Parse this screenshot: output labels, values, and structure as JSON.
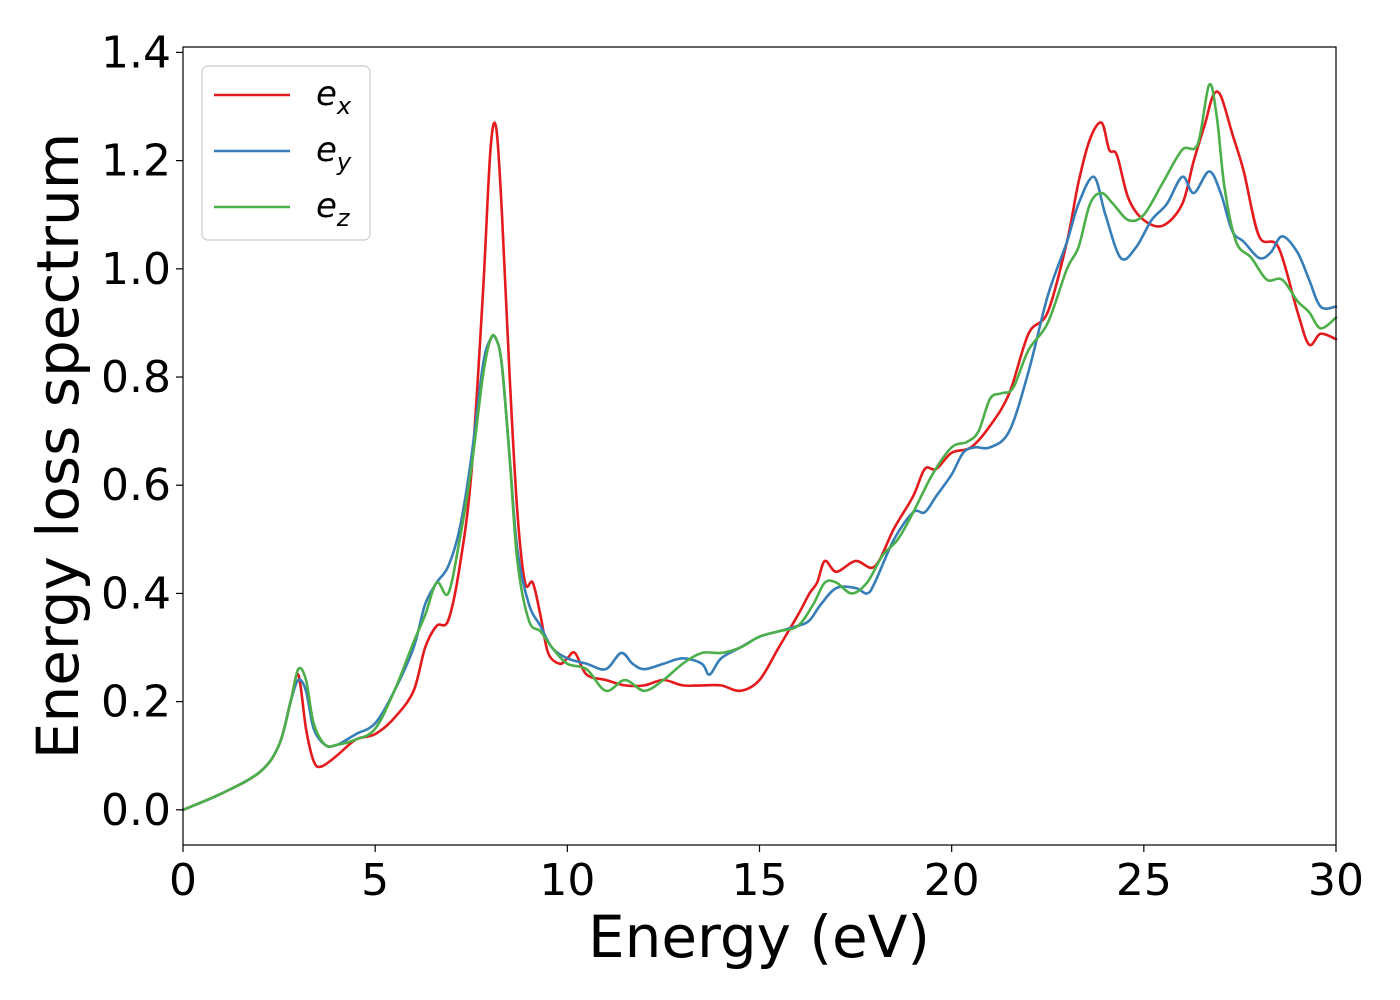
{
  "chart_data": {
    "type": "line",
    "title": "",
    "xlabel": "Energy (eV)",
    "ylabel": "Energy loss spectrum",
    "xlim": [
      0,
      30
    ],
    "ylim": [
      -0.065,
      1.41
    ],
    "xticks": [
      0,
      5,
      10,
      15,
      20,
      25,
      30
    ],
    "xtick_labels": [
      "0",
      "5",
      "10",
      "15",
      "20",
      "25",
      "30"
    ],
    "yticks": [
      0.0,
      0.2,
      0.4,
      0.6,
      0.8,
      1.0,
      1.2,
      1.4
    ],
    "ytick_labels": [
      "0.0",
      "0.2",
      "0.4",
      "0.6",
      "0.8",
      "1.0",
      "1.2",
      "1.4"
    ],
    "grid": false,
    "legend_position": "top-left",
    "series": [
      {
        "name": "e",
        "subscript": "x",
        "color": "#e41a1c",
        "x": [
          0,
          1,
          2,
          2.5,
          2.8,
          3.0,
          3.2,
          3.4,
          3.6,
          4,
          4.5,
          5,
          5.5,
          6,
          6.3,
          6.6,
          6.9,
          7.2,
          7.5,
          7.8,
          8.0,
          8.15,
          8.3,
          8.5,
          8.7,
          8.9,
          9.1,
          9.3,
          9.5,
          9.8,
          10.0,
          10.2,
          10.5,
          11,
          11.5,
          12,
          12.5,
          13,
          13.5,
          14,
          14.5,
          15,
          15.5,
          16,
          16.3,
          16.5,
          16.7,
          17,
          17.5,
          18,
          18.5,
          19,
          19.3,
          19.6,
          20,
          20.5,
          21,
          21.5,
          22,
          22.5,
          23,
          23.3,
          23.6,
          23.9,
          24.1,
          24.3,
          24.6,
          25,
          25.5,
          26,
          26.3,
          26.6,
          26.8,
          27.0,
          27.3,
          27.6,
          28,
          28.5,
          29,
          29.3,
          29.6,
          30
        ],
        "y": [
          0.0,
          0.03,
          0.07,
          0.12,
          0.2,
          0.25,
          0.15,
          0.09,
          0.08,
          0.1,
          0.13,
          0.14,
          0.17,
          0.22,
          0.3,
          0.34,
          0.35,
          0.45,
          0.62,
          0.95,
          1.22,
          1.26,
          1.1,
          0.8,
          0.55,
          0.42,
          0.42,
          0.36,
          0.29,
          0.27,
          0.28,
          0.29,
          0.25,
          0.24,
          0.23,
          0.23,
          0.24,
          0.23,
          0.23,
          0.23,
          0.22,
          0.24,
          0.3,
          0.36,
          0.4,
          0.42,
          0.46,
          0.44,
          0.46,
          0.45,
          0.52,
          0.58,
          0.63,
          0.63,
          0.66,
          0.67,
          0.71,
          0.77,
          0.88,
          0.92,
          1.05,
          1.16,
          1.24,
          1.27,
          1.22,
          1.21,
          1.13,
          1.09,
          1.08,
          1.12,
          1.2,
          1.27,
          1.32,
          1.32,
          1.25,
          1.18,
          1.06,
          1.04,
          0.92,
          0.86,
          0.88,
          0.87
        ]
      },
      {
        "name": "e",
        "subscript": "y",
        "color": "#377eb8",
        "x": [
          0,
          1,
          2,
          2.5,
          2.8,
          3.0,
          3.2,
          3.4,
          3.7,
          4,
          4.5,
          5,
          5.5,
          6,
          6.3,
          6.6,
          6.9,
          7.2,
          7.5,
          7.8,
          8.0,
          8.15,
          8.3,
          8.5,
          8.7,
          9.0,
          9.3,
          9.6,
          10,
          10.5,
          11,
          11.4,
          11.7,
          12,
          12.5,
          13,
          13.5,
          13.7,
          14,
          14.5,
          15,
          15.5,
          16,
          16.3,
          16.6,
          17,
          17.5,
          17.8,
          18,
          18.5,
          19,
          19.3,
          19.6,
          20,
          20.3,
          20.6,
          21,
          21.5,
          22,
          22.5,
          23,
          23.3,
          23.7,
          24,
          24.4,
          24.8,
          25.2,
          25.6,
          26,
          26.3,
          26.7,
          27.0,
          27.3,
          27.6,
          28,
          28.3,
          28.6,
          29,
          29.3,
          29.6,
          30
        ],
        "y": [
          0.0,
          0.03,
          0.07,
          0.12,
          0.2,
          0.24,
          0.22,
          0.15,
          0.12,
          0.12,
          0.14,
          0.16,
          0.22,
          0.3,
          0.38,
          0.42,
          0.45,
          0.52,
          0.65,
          0.82,
          0.87,
          0.87,
          0.82,
          0.65,
          0.48,
          0.38,
          0.34,
          0.3,
          0.28,
          0.27,
          0.26,
          0.29,
          0.27,
          0.26,
          0.27,
          0.28,
          0.27,
          0.25,
          0.28,
          0.3,
          0.32,
          0.33,
          0.34,
          0.35,
          0.38,
          0.41,
          0.41,
          0.4,
          0.42,
          0.5,
          0.55,
          0.55,
          0.58,
          0.62,
          0.66,
          0.67,
          0.67,
          0.7,
          0.81,
          0.95,
          1.05,
          1.12,
          1.17,
          1.1,
          1.02,
          1.04,
          1.09,
          1.12,
          1.17,
          1.14,
          1.18,
          1.14,
          1.07,
          1.05,
          1.02,
          1.03,
          1.06,
          1.03,
          0.98,
          0.93,
          0.93
        ]
      },
      {
        "name": "e",
        "subscript": "z",
        "color": "#4daf4a",
        "x": [
          0,
          1,
          2,
          2.5,
          2.8,
          3.0,
          3.2,
          3.4,
          3.7,
          4,
          4.5,
          5,
          5.5,
          6,
          6.3,
          6.6,
          6.9,
          7.2,
          7.5,
          7.8,
          8.0,
          8.15,
          8.3,
          8.5,
          8.7,
          9.0,
          9.3,
          9.6,
          10,
          10.5,
          11,
          11.5,
          12,
          12.5,
          13,
          13.5,
          14,
          14.5,
          15,
          15.5,
          16,
          16.4,
          16.7,
          17,
          17.4,
          17.8,
          18.2,
          18.6,
          19,
          19.5,
          20,
          20.4,
          20.7,
          21,
          21.3,
          21.6,
          22,
          22.5,
          23,
          23.3,
          23.6,
          23.9,
          24.2,
          24.6,
          25,
          25.5,
          26,
          26.4,
          26.7,
          26.9,
          27.1,
          27.4,
          27.8,
          28.2,
          28.6,
          29,
          29.3,
          29.6,
          30
        ],
        "y": [
          0.0,
          0.03,
          0.07,
          0.12,
          0.2,
          0.26,
          0.24,
          0.16,
          0.12,
          0.12,
          0.13,
          0.15,
          0.22,
          0.31,
          0.36,
          0.42,
          0.4,
          0.5,
          0.63,
          0.8,
          0.87,
          0.87,
          0.82,
          0.65,
          0.46,
          0.35,
          0.33,
          0.3,
          0.27,
          0.26,
          0.22,
          0.24,
          0.22,
          0.24,
          0.27,
          0.29,
          0.29,
          0.3,
          0.32,
          0.33,
          0.34,
          0.38,
          0.42,
          0.42,
          0.4,
          0.42,
          0.47,
          0.5,
          0.55,
          0.62,
          0.67,
          0.68,
          0.7,
          0.76,
          0.77,
          0.78,
          0.85,
          0.9,
          1.0,
          1.04,
          1.12,
          1.14,
          1.12,
          1.09,
          1.1,
          1.16,
          1.22,
          1.23,
          1.34,
          1.28,
          1.15,
          1.05,
          1.02,
          0.98,
          0.98,
          0.94,
          0.92,
          0.89,
          0.91
        ]
      }
    ]
  }
}
